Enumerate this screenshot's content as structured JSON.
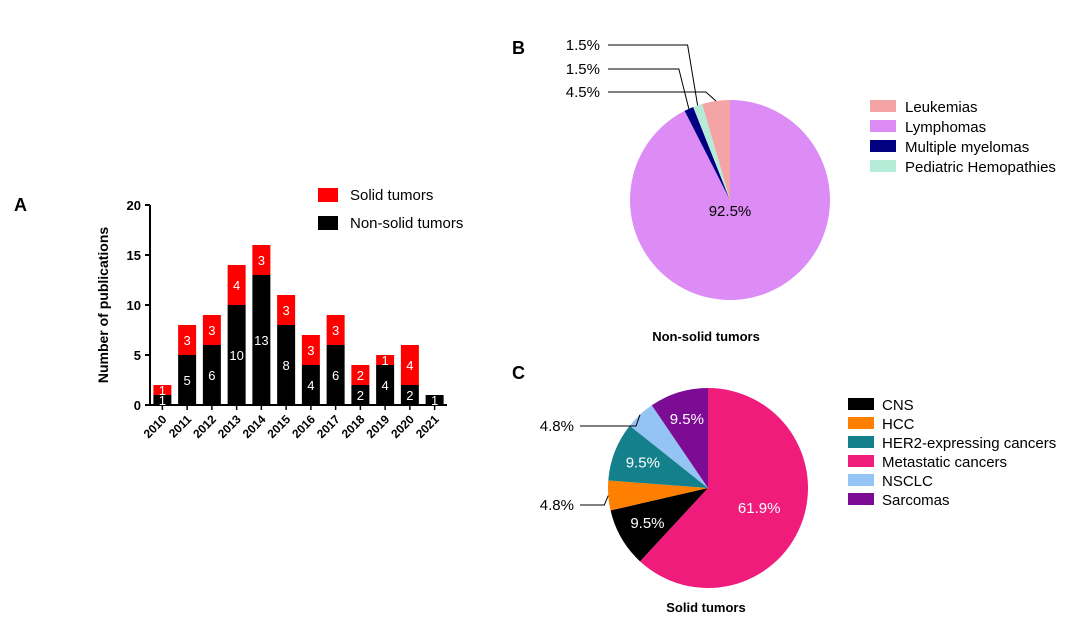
{
  "panels": {
    "a": "A",
    "b": "B",
    "c": "C"
  },
  "chart_data": [
    {
      "type": "bar",
      "stacked": true,
      "ylabel": "Number of publications",
      "ylim": [
        0,
        20
      ],
      "yticks": [
        0,
        5,
        10,
        15,
        20
      ],
      "categories": [
        "2010",
        "2011",
        "2012",
        "2013",
        "2014",
        "2015",
        "2016",
        "2017",
        "2018",
        "2019",
        "2020",
        "2021"
      ],
      "series": [
        {
          "name": "Non-solid tumors",
          "color": "#000000",
          "values": [
            1,
            5,
            6,
            10,
            13,
            8,
            4,
            6,
            2,
            4,
            2,
            1
          ]
        },
        {
          "name": "Solid tumors",
          "color": "#ff0000",
          "values": [
            1,
            3,
            3,
            4,
            3,
            3,
            3,
            3,
            2,
            1,
            4,
            0
          ]
        }
      ],
      "legend_position": "top-right"
    },
    {
      "type": "pie",
      "title": "Non-solid tumors",
      "slices": [
        {
          "label": "Leukemias",
          "value": 4.5,
          "display": "4.5%",
          "color": "#f4a4a4"
        },
        {
          "label": "Lymphomas",
          "value": 92.5,
          "display": "92.5%",
          "color": "#dc8cf4"
        },
        {
          "label": "Multiple myelomas",
          "value": 1.5,
          "display": "1.5%",
          "color": "#000080"
        },
        {
          "label": "Pediatric Hemopathies",
          "value": 1.5,
          "display": "1.5%",
          "color": "#b4ecd8"
        }
      ],
      "legend_position": "right"
    },
    {
      "type": "pie",
      "title": "Solid tumors",
      "slices": [
        {
          "label": "CNS",
          "value": 9.5,
          "display": "9.5%",
          "color": "#000000"
        },
        {
          "label": "HCC",
          "value": 4.8,
          "display": "4.8%",
          "color": "#ff8000"
        },
        {
          "label": "HER2-expressing cancers",
          "value": 9.5,
          "display": "9.5%",
          "color": "#14808c"
        },
        {
          "label": "Metastatic cancers",
          "value": 61.9,
          "display": "61.9%",
          "color": "#f01c7c"
        },
        {
          "label": "NSCLC",
          "value": 4.8,
          "display": "4.8%",
          "color": "#94c4f4"
        },
        {
          "label": "Sarcomas",
          "value": 9.5,
          "display": "9.5%",
          "color": "#7c0c94"
        }
      ],
      "legend_position": "right"
    }
  ]
}
